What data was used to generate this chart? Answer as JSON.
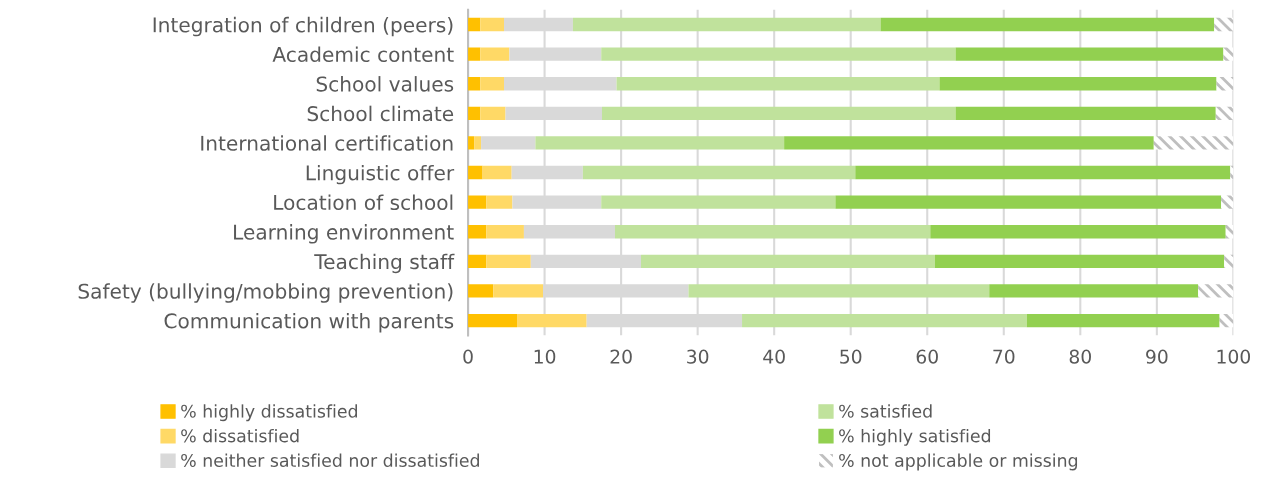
{
  "chart_data": {
    "type": "bar",
    "orientation": "horizontal",
    "stacked": true,
    "categories": [
      "Integration of children (peers)",
      "Academic content",
      "School values",
      "School climate",
      "International certification",
      "Linguistic offer",
      "Location of school",
      "Learning environment",
      "Teaching staff",
      "Safety (bullying/mobbing prevention)",
      "Communication with parents"
    ],
    "series": [
      {
        "name": "% highly dissatisfied",
        "color": "#ffc000",
        "values": [
          1.6,
          1.6,
          1.6,
          1.6,
          0.8,
          1.9,
          2.4,
          2.4,
          2.4,
          3.3,
          6.4
        ]
      },
      {
        "name": "% dissatisfied",
        "color": "#ffd966",
        "values": [
          3.1,
          3.8,
          3.1,
          3.3,
          0.9,
          3.8,
          3.4,
          4.9,
          5.8,
          6.5,
          9.1
        ]
      },
      {
        "name": "% neither satisfied nor dissatisfied",
        "color": "#d9d9d9",
        "values": [
          9.0,
          12.0,
          14.7,
          12.6,
          7.1,
          9.3,
          11.6,
          11.9,
          14.4,
          19.0,
          20.3
        ]
      },
      {
        "name": "% satisfied",
        "color": "#c0e29c",
        "values": [
          40.2,
          46.3,
          42.2,
          46.2,
          32.5,
          35.6,
          30.6,
          41.2,
          38.4,
          39.3,
          37.2
        ]
      },
      {
        "name": "% highly satisfied",
        "color": "#92d050",
        "values": [
          43.6,
          35.0,
          36.2,
          34.0,
          48.3,
          49.0,
          50.4,
          38.6,
          37.8,
          27.3,
          25.2
        ]
      },
      {
        "name": "% not applicable or missing",
        "color": "#bfbfbf",
        "values": [
          2.5,
          1.3,
          2.2,
          2.3,
          10.4,
          0.4,
          1.6,
          1.0,
          1.2,
          4.6,
          1.8
        ]
      }
    ],
    "xlim": [
      0,
      100
    ],
    "xticks": [
      0,
      10,
      20,
      30,
      40,
      50,
      60,
      70,
      80,
      90,
      100
    ],
    "grid": "x",
    "legend": "bottom"
  }
}
